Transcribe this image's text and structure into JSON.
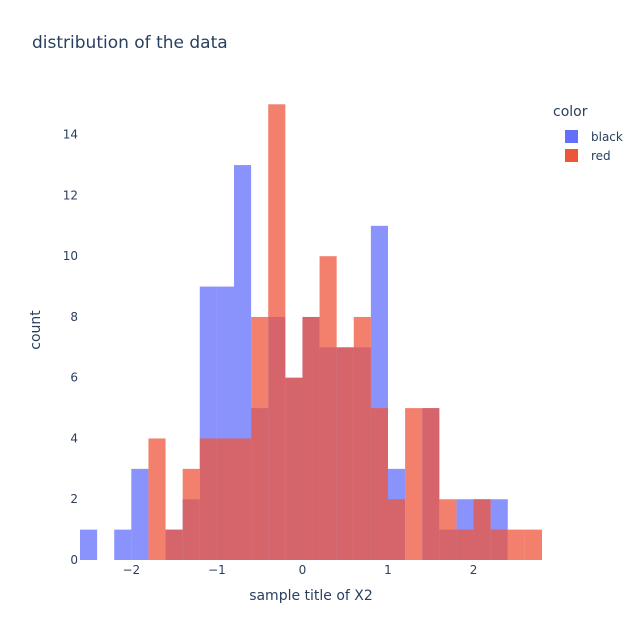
{
  "chart_data": {
    "type": "histogram",
    "title": "distribution of the data",
    "xlabel": "sample title of X2",
    "ylabel": "count",
    "xlim": [
      -2.6,
      2.8
    ],
    "ylim": [
      0,
      15.8
    ],
    "x_ticks": [
      -2,
      -1,
      0,
      1,
      2
    ],
    "x_tick_labels": [
      "−2",
      "−1",
      "0",
      "1",
      "2"
    ],
    "y_ticks": [
      0,
      2,
      4,
      6,
      8,
      10,
      12,
      14
    ],
    "bin_start": -2.6,
    "bin_width": 0.2,
    "barmode": "overlay",
    "opacity": 0.75,
    "grid": false,
    "legend_title": "color",
    "legend_position": "top-right",
    "series": [
      {
        "name": "black",
        "color": "#636efa",
        "values": [
          1,
          0,
          1,
          3,
          0,
          1,
          2,
          9,
          9,
          13,
          5,
          8,
          6,
          8,
          7,
          7,
          7,
          11,
          3,
          0,
          5,
          1,
          2,
          2,
          2,
          0,
          0
        ]
      },
      {
        "name": "red",
        "color": "#ef553b",
        "values": [
          0,
          0,
          0,
          0,
          4,
          1,
          3,
          4,
          4,
          4,
          8,
          15,
          6,
          8,
          10,
          7,
          8,
          5,
          2,
          5,
          5,
          2,
          1,
          2,
          1,
          1,
          1
        ]
      }
    ]
  }
}
